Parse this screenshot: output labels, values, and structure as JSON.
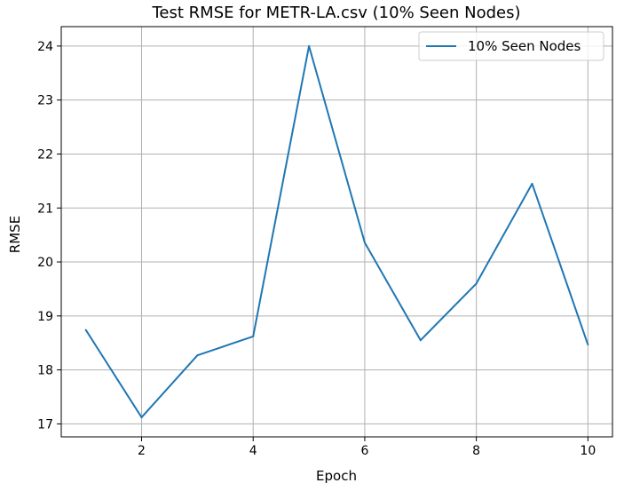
{
  "chart_data": {
    "type": "line",
    "title": "Test RMSE for METR-LA.csv (10% Seen Nodes)",
    "xlabel": "Epoch",
    "ylabel": "RMSE",
    "xlim": [
      0.56,
      10.44
    ],
    "ylim": [
      16.76,
      24.36
    ],
    "xticks": [
      2,
      4,
      6,
      8,
      10
    ],
    "yticks": [
      17,
      18,
      19,
      20,
      21,
      22,
      23,
      24
    ],
    "grid": true,
    "legend_position": "top-right",
    "series": [
      {
        "name": "10% Seen Nodes",
        "color": "#1f77b4",
        "x": [
          1,
          2,
          3,
          4,
          5,
          6,
          7,
          8,
          9,
          10
        ],
        "y": [
          18.74,
          17.12,
          18.27,
          18.62,
          24.0,
          20.36,
          18.55,
          19.6,
          21.45,
          18.47
        ]
      }
    ]
  }
}
